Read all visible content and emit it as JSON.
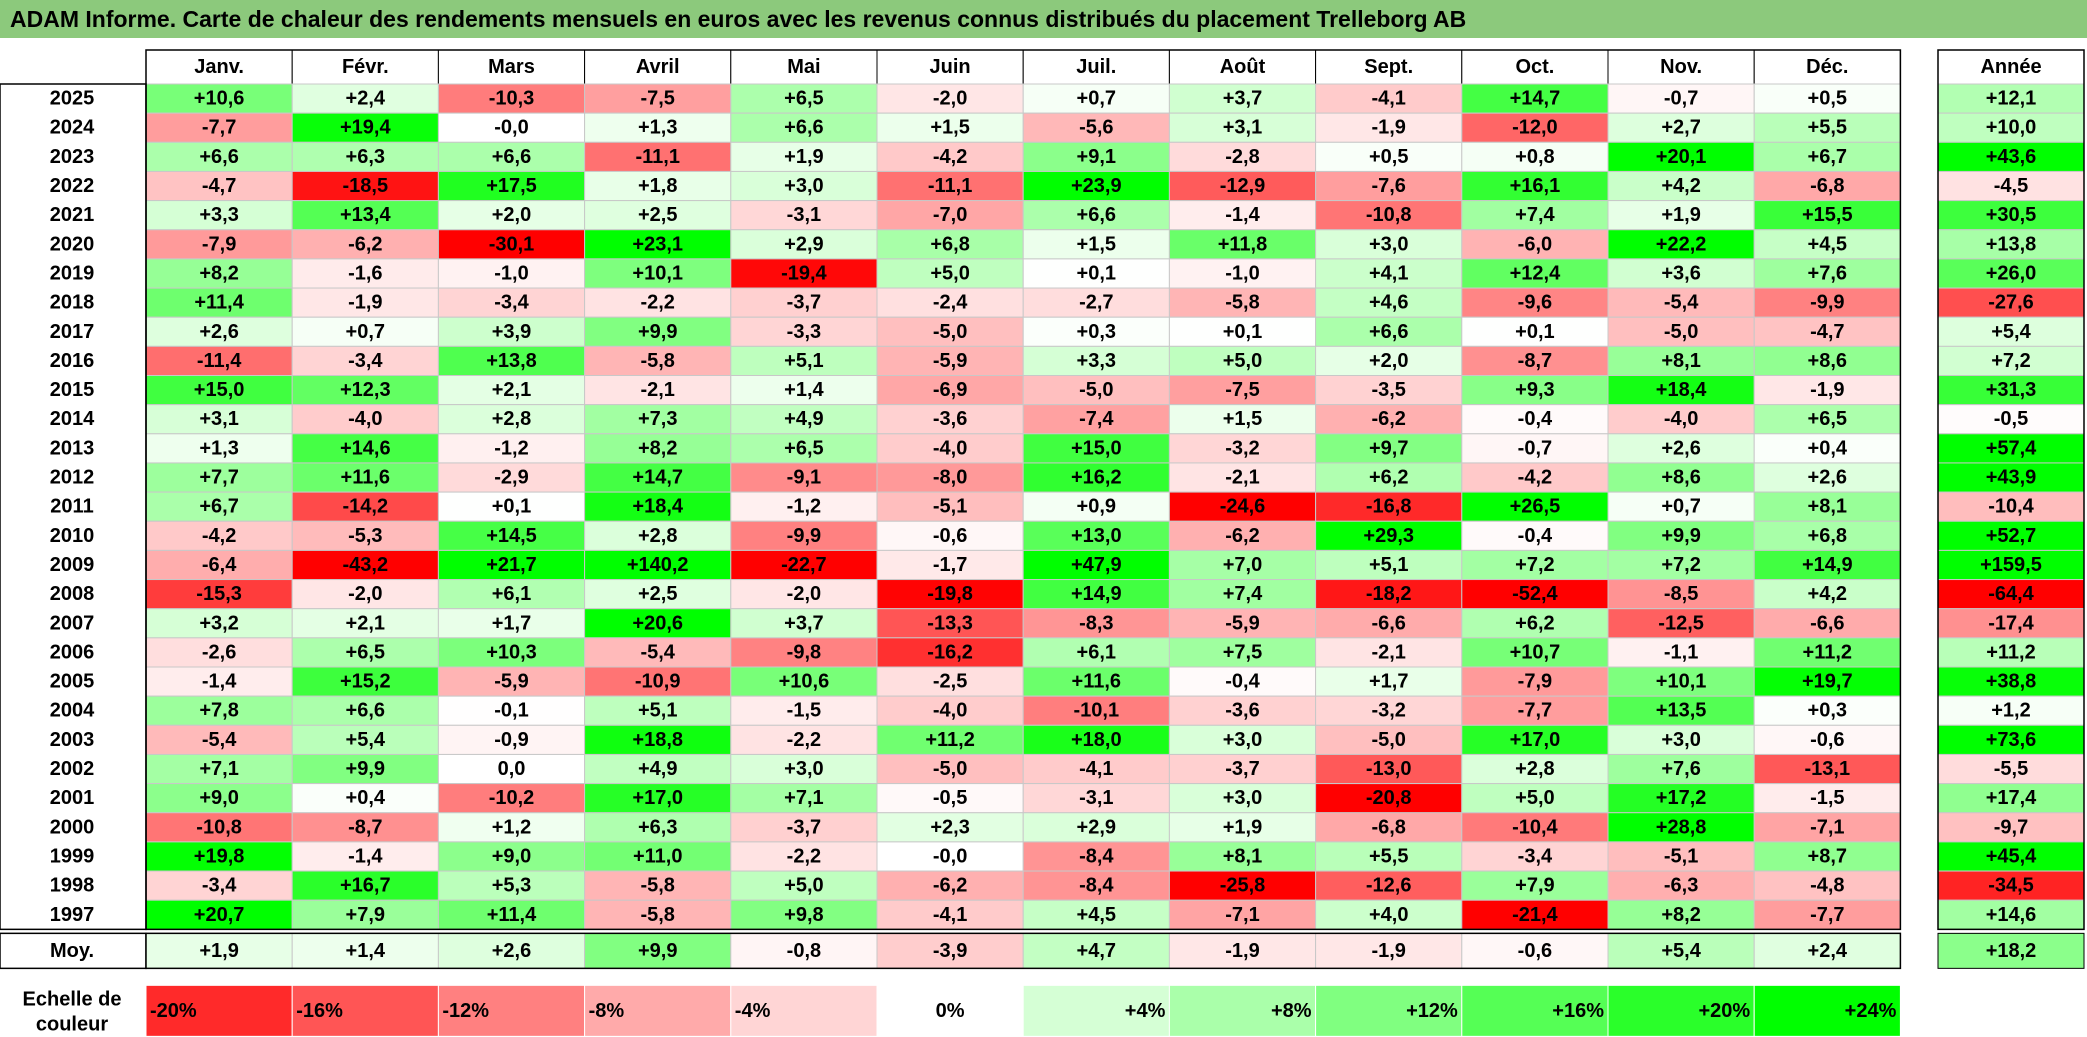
{
  "title": "ADAM Informe. Carte de chaleur des rendements mensuels en euros avec les revenus connus distribués du placement Trelleborg AB",
  "annual_label": "Année",
  "legend_label_line1": "Echelle de",
  "legend_label_line2": "couleur",
  "legend_ticks": [
    "-20%",
    "-16%",
    "-12%",
    "-8%",
    "-4%",
    "0%",
    "+4%",
    "+8%",
    "+12%",
    "+16%",
    "+20%",
    "+24%"
  ],
  "colors": {
    "negative": "#ff0000",
    "neutral": "#ffffff",
    "positive": "#00ff00",
    "title_bar": "#8cc97c"
  },
  "chart_data": {
    "type": "heatmap",
    "title": "ADAM Informe. Carte de chaleur des rendements mensuels en euros avec les revenus connus distribués du placement Trelleborg AB",
    "columns": [
      "Janv.",
      "Févr.",
      "Mars",
      "Avril",
      "Mai",
      "Juin",
      "Juil.",
      "Août",
      "Sept.",
      "Oct.",
      "Nov.",
      "Déc."
    ],
    "rows": [
      {
        "year": "2025",
        "values": [
          "+10,6",
          "+2,4",
          "-10,3",
          "-7,5",
          "+6,5",
          "-2,0",
          "+0,7",
          "+3,7",
          "-4,1",
          "+14,7",
          "-0,7",
          "+0,5"
        ],
        "annual": "+12,1"
      },
      {
        "year": "2024",
        "values": [
          "-7,7",
          "+19,4",
          "-0,0",
          "+1,3",
          "+6,6",
          "+1,5",
          "-5,6",
          "+3,1",
          "-1,9",
          "-12,0",
          "+2,7",
          "+5,5"
        ],
        "annual": "+10,0"
      },
      {
        "year": "2023",
        "values": [
          "+6,6",
          "+6,3",
          "+6,6",
          "-11,1",
          "+1,9",
          "-4,2",
          "+9,1",
          "-2,8",
          "+0,5",
          "+0,8",
          "+20,1",
          "+6,7"
        ],
        "annual": "+43,6"
      },
      {
        "year": "2022",
        "values": [
          "-4,7",
          "-18,5",
          "+17,5",
          "+1,8",
          "+3,0",
          "-11,1",
          "+23,9",
          "-12,9",
          "-7,6",
          "+16,1",
          "+4,2",
          "-6,8"
        ],
        "annual": "-4,5"
      },
      {
        "year": "2021",
        "values": [
          "+3,3",
          "+13,4",
          "+2,0",
          "+2,5",
          "-3,1",
          "-7,0",
          "+6,6",
          "-1,4",
          "-10,8",
          "+7,4",
          "+1,9",
          "+15,5"
        ],
        "annual": "+30,5"
      },
      {
        "year": "2020",
        "values": [
          "-7,9",
          "-6,2",
          "-30,1",
          "+23,1",
          "+2,9",
          "+6,8",
          "+1,5",
          "+11,8",
          "+3,0",
          "-6,0",
          "+22,2",
          "+4,5"
        ],
        "annual": "+13,8"
      },
      {
        "year": "2019",
        "values": [
          "+8,2",
          "-1,6",
          "-1,0",
          "+10,1",
          "-19,4",
          "+5,0",
          "+0,1",
          "-1,0",
          "+4,1",
          "+12,4",
          "+3,6",
          "+7,6"
        ],
        "annual": "+26,0"
      },
      {
        "year": "2018",
        "values": [
          "+11,4",
          "-1,9",
          "-3,4",
          "-2,2",
          "-3,7",
          "-2,4",
          "-2,7",
          "-5,8",
          "+4,6",
          "-9,6",
          "-5,4",
          "-9,9"
        ],
        "annual": "-27,6"
      },
      {
        "year": "2017",
        "values": [
          "+2,6",
          "+0,7",
          "+3,9",
          "+9,9",
          "-3,3",
          "-5,0",
          "+0,3",
          "+0,1",
          "+6,6",
          "+0,1",
          "-5,0",
          "-4,7"
        ],
        "annual": "+5,4"
      },
      {
        "year": "2016",
        "values": [
          "-11,4",
          "-3,4",
          "+13,8",
          "-5,8",
          "+5,1",
          "-5,9",
          "+3,3",
          "+5,0",
          "+2,0",
          "-8,7",
          "+8,1",
          "+8,6"
        ],
        "annual": "+7,2"
      },
      {
        "year": "2015",
        "values": [
          "+15,0",
          "+12,3",
          "+2,1",
          "-2,1",
          "+1,4",
          "-6,9",
          "-5,0",
          "-7,5",
          "-3,5",
          "+9,3",
          "+18,4",
          "-1,9"
        ],
        "annual": "+31,3"
      },
      {
        "year": "2014",
        "values": [
          "+3,1",
          "-4,0",
          "+2,8",
          "+7,3",
          "+4,9",
          "-3,6",
          "-7,4",
          "+1,5",
          "-6,2",
          "-0,4",
          "-4,0",
          "+6,5"
        ],
        "annual": "-0,5"
      },
      {
        "year": "2013",
        "values": [
          "+1,3",
          "+14,6",
          "-1,2",
          "+8,2",
          "+6,5",
          "-4,0",
          "+15,0",
          "-3,2",
          "+9,7",
          "-0,7",
          "+2,6",
          "+0,4"
        ],
        "annual": "+57,4"
      },
      {
        "year": "2012",
        "values": [
          "+7,7",
          "+11,6",
          "-2,9",
          "+14,7",
          "-9,1",
          "-8,0",
          "+16,2",
          "-2,1",
          "+6,2",
          "-4,2",
          "+8,6",
          "+2,6"
        ],
        "annual": "+43,9"
      },
      {
        "year": "2011",
        "values": [
          "+6,7",
          "-14,2",
          "+0,1",
          "+18,4",
          "-1,2",
          "-5,1",
          "+0,9",
          "-24,6",
          "-16,8",
          "+26,5",
          "+0,7",
          "+8,1"
        ],
        "annual": "-10,4"
      },
      {
        "year": "2010",
        "values": [
          "-4,2",
          "-5,3",
          "+14,5",
          "+2,8",
          "-9,9",
          "-0,6",
          "+13,0",
          "-6,2",
          "+29,3",
          "-0,4",
          "+9,9",
          "+6,8"
        ],
        "annual": "+52,7"
      },
      {
        "year": "2009",
        "values": [
          "-6,4",
          "-43,2",
          "+21,7",
          "+140,2",
          "-22,7",
          "-1,7",
          "+47,9",
          "+7,0",
          "+5,1",
          "+7,2",
          "+7,2",
          "+14,9"
        ],
        "annual": "+159,5"
      },
      {
        "year": "2008",
        "values": [
          "-15,3",
          "-2,0",
          "+6,1",
          "+2,5",
          "-2,0",
          "-19,8",
          "+14,9",
          "+7,4",
          "-18,2",
          "-52,4",
          "-8,5",
          "+4,2"
        ],
        "annual": "-64,4"
      },
      {
        "year": "2007",
        "values": [
          "+3,2",
          "+2,1",
          "+1,7",
          "+20,6",
          "+3,7",
          "-13,3",
          "-8,3",
          "-5,9",
          "-6,6",
          "+6,2",
          "-12,5",
          "-6,6"
        ],
        "annual": "-17,4"
      },
      {
        "year": "2006",
        "values": [
          "-2,6",
          "+6,5",
          "+10,3",
          "-5,4",
          "-9,8",
          "-16,2",
          "+6,1",
          "+7,5",
          "-2,1",
          "+10,7",
          "-1,1",
          "+11,2"
        ],
        "annual": "+11,2"
      },
      {
        "year": "2005",
        "values": [
          "-1,4",
          "+15,2",
          "-5,9",
          "-10,9",
          "+10,6",
          "-2,5",
          "+11,6",
          "-0,4",
          "+1,7",
          "-7,9",
          "+10,1",
          "+19,7"
        ],
        "annual": "+38,8"
      },
      {
        "year": "2004",
        "values": [
          "+7,8",
          "+6,6",
          "-0,1",
          "+5,1",
          "-1,5",
          "-4,0",
          "-10,1",
          "-3,6",
          "-3,2",
          "-7,7",
          "+13,5",
          "+0,3"
        ],
        "annual": "+1,2"
      },
      {
        "year": "2003",
        "values": [
          "-5,4",
          "+5,4",
          "-0,9",
          "+18,8",
          "-2,2",
          "+11,2",
          "+18,0",
          "+3,0",
          "-5,0",
          "+17,0",
          "+3,0",
          "-0,6"
        ],
        "annual": "+73,6"
      },
      {
        "year": "2002",
        "values": [
          "+7,1",
          "+9,9",
          "0,0",
          "+4,9",
          "+3,0",
          "-5,0",
          "-4,1",
          "-3,7",
          "-13,0",
          "+2,8",
          "+7,6",
          "-13,1"
        ],
        "annual": "-5,5"
      },
      {
        "year": "2001",
        "values": [
          "+9,0",
          "+0,4",
          "-10,2",
          "+17,0",
          "+7,1",
          "-0,5",
          "-3,1",
          "+3,0",
          "-20,8",
          "+5,0",
          "+17,2",
          "-1,5"
        ],
        "annual": "+17,4"
      },
      {
        "year": "2000",
        "values": [
          "-10,8",
          "-8,7",
          "+1,2",
          "+6,3",
          "-3,7",
          "+2,3",
          "+2,9",
          "+1,9",
          "-6,8",
          "-10,4",
          "+28,8",
          "-7,1"
        ],
        "annual": "-9,7"
      },
      {
        "year": "1999",
        "values": [
          "+19,8",
          "-1,4",
          "+9,0",
          "+11,0",
          "-2,2",
          "-0,0",
          "-8,4",
          "+8,1",
          "+5,5",
          "-3,4",
          "-5,1",
          "+8,7"
        ],
        "annual": "+45,4"
      },
      {
        "year": "1998",
        "values": [
          "-3,4",
          "+16,7",
          "+5,3",
          "-5,8",
          "+5,0",
          "-6,2",
          "-8,4",
          "-25,8",
          "-12,6",
          "+7,9",
          "-6,3",
          "-4,8"
        ],
        "annual": "-34,5"
      },
      {
        "year": "1997",
        "values": [
          "+20,7",
          "+7,9",
          "+11,4",
          "-5,8",
          "+9,8",
          "-4,1",
          "+4,5",
          "-7,1",
          "+4,0",
          "-21,4",
          "+8,2",
          "-7,7"
        ],
        "annual": "+14,6"
      }
    ],
    "average": {
      "label": "Moy.",
      "values": [
        "+1,9",
        "+1,4",
        "+2,6",
        "+9,9",
        "-0,8",
        "-3,9",
        "+4,7",
        "-1,9",
        "-1,9",
        "-0,6",
        "+5,4",
        "+2,4"
      ],
      "annual": "+18,2"
    },
    "color_scale": {
      "min": -20,
      "mid": 0,
      "max": 24
    }
  }
}
